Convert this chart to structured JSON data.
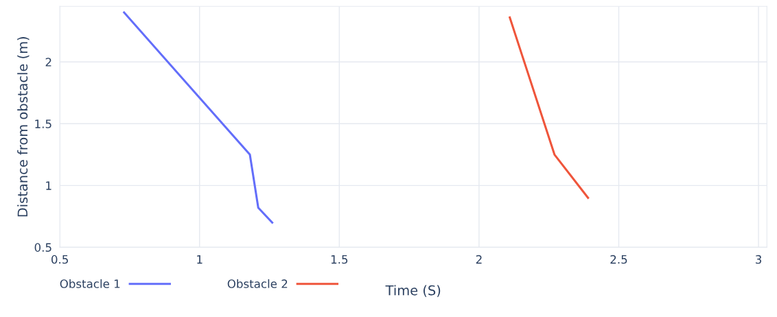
{
  "chart_data": {
    "type": "line",
    "xlabel": "Time (S)",
    "ylabel": "Distance from obstacle (m)",
    "series": [
      {
        "name": "Obstacle 1",
        "color": "#636efa",
        "x": [
          0.73,
          1.18,
          1.21,
          1.26
        ],
        "values": [
          2.4,
          1.25,
          0.82,
          0.7
        ]
      },
      {
        "name": "Obstacle 2",
        "color": "#ef553b",
        "x": [
          2.11,
          2.27,
          2.39
        ],
        "values": [
          2.36,
          1.25,
          0.9
        ]
      }
    ],
    "xlim": [
      0.5,
      3.03
    ],
    "xticks": [
      0.5,
      1,
      1.5,
      2,
      2.5,
      3
    ],
    "ylim": [
      0.5,
      2.45
    ],
    "yticks": [
      0.5,
      1,
      1.5,
      2
    ],
    "grid": true,
    "legend": "bottom left",
    "marker": "none",
    "line_style": "solid"
  }
}
